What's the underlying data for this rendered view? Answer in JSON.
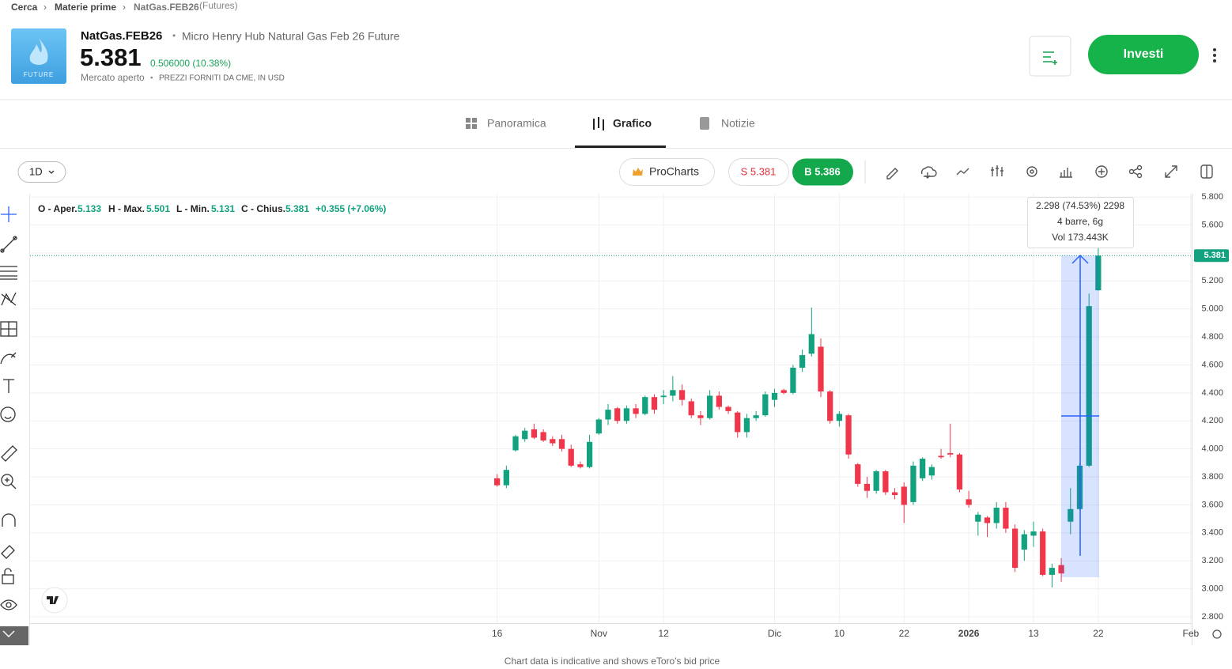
{
  "breadcrumb": {
    "items": [
      "Cerca",
      "Materie prime",
      "NatGas.FEB26"
    ],
    "suffix": "(Futures)"
  },
  "header": {
    "logo_text": "FUTURE",
    "symbol": "NatGas.FEB26",
    "name": "Micro Henry Hub Natural Gas Feb 26 Future",
    "price": "5.381",
    "change": "0.506000 (10.38%)",
    "status": "Mercato aperto",
    "source": "PREZZI FORNITI DA CME, IN USD",
    "invest_button": "Investi"
  },
  "tabs": [
    "Panoramica",
    "Grafico",
    "Notizie"
  ],
  "toolbar": {
    "interval": "1D",
    "procharts": "ProCharts",
    "sell": "S 5.381",
    "buy": "B 5.386"
  },
  "ohlc_legend": {
    "open_label": "O - Aper.",
    "open": "5.133",
    "high_label": "H - Max.",
    "high": "5.501",
    "low_label": "L - Min.",
    "low": "5.131",
    "close_label": "C - Chius.",
    "close": "5.381",
    "change": "+0.355 (+7.06%)"
  },
  "measure": {
    "line1": "2.298 (74.53%) 2298",
    "line2": "4 barre, 6g",
    "line3": "Vol 173.443K"
  },
  "footer": "Chart data is indicative and shows eToro's bid price",
  "chart_data": {
    "type": "candlestick",
    "categories": [
      "16",
      null,
      null,
      null,
      null,
      null,
      null,
      null,
      null,
      null,
      null,
      "Nov",
      null,
      null,
      null,
      null,
      null,
      null,
      "12",
      null,
      null,
      null,
      null,
      null,
      null,
      null,
      null,
      null,
      null,
      null,
      "Dic",
      null,
      null,
      null,
      null,
      null,
      null,
      "10",
      null,
      null,
      null,
      null,
      null,
      null,
      "22",
      null,
      null,
      null,
      null,
      null,
      null,
      "2026",
      null,
      null,
      null,
      null,
      null,
      null,
      "13",
      null,
      null,
      null,
      null,
      null,
      null,
      "22",
      null,
      null,
      null,
      null,
      null,
      null,
      null,
      null,
      null,
      "Feb"
    ],
    "open": [
      3.79,
      3.74,
      3.99,
      4.07,
      4.14,
      4.12,
      4.07,
      4.07,
      4.0,
      3.89,
      3.87,
      4.11,
      4.21,
      4.29,
      4.2,
      4.29,
      4.25,
      4.37,
      4.37,
      4.38,
      4.42,
      4.34,
      4.24,
      4.22,
      4.38,
      4.3,
      4.26,
      4.12,
      4.22,
      4.24,
      4.35,
      4.42,
      4.4,
      4.58,
      4.68,
      4.73,
      4.41,
      4.2,
      4.24,
      3.89,
      3.75,
      3.7,
      3.84,
      3.69,
      3.73,
      3.62,
      3.79,
      3.81,
      3.95,
      3.97,
      3.96,
      3.64,
      3.48,
      3.51,
      3.47,
      3.58,
      3.43,
      3.28,
      3.38,
      3.41,
      3.1,
      3.17,
      3.48,
      3.57,
      3.88,
      5.133,
      null,
      null,
      null,
      null,
      null,
      null,
      null,
      null,
      null,
      null
    ],
    "high": [
      3.82,
      3.88,
      4.1,
      4.15,
      4.18,
      4.14,
      4.09,
      4.1,
      4.03,
      3.91,
      4.1,
      4.22,
      4.32,
      4.3,
      4.31,
      4.32,
      4.38,
      4.39,
      4.42,
      4.52,
      4.46,
      4.36,
      4.27,
      4.42,
      4.41,
      4.31,
      4.27,
      4.25,
      4.27,
      4.41,
      4.43,
      4.43,
      4.6,
      4.71,
      5.01,
      4.79,
      4.42,
      4.27,
      4.25,
      3.9,
      3.8,
      3.85,
      3.85,
      3.72,
      3.76,
      3.91,
      3.94,
      3.89,
      4.0,
      4.18,
      3.97,
      3.7,
      3.55,
      3.52,
      3.62,
      3.62,
      3.46,
      3.42,
      3.48,
      3.43,
      3.18,
      3.22,
      3.72,
      3.9,
      5.11,
      5.501,
      null,
      null,
      null,
      null,
      null,
      null,
      null,
      null,
      null,
      null
    ],
    "low": [
      3.73,
      3.72,
      3.98,
      4.05,
      4.07,
      4.05,
      4.02,
      3.98,
      3.87,
      3.86,
      3.86,
      4.1,
      4.17,
      4.18,
      4.18,
      4.22,
      4.24,
      4.25,
      4.32,
      4.34,
      4.31,
      4.22,
      4.17,
      4.21,
      4.28,
      4.25,
      4.08,
      4.08,
      4.2,
      4.23,
      4.3,
      4.39,
      4.39,
      4.55,
      4.66,
      4.37,
      4.18,
      4.16,
      3.93,
      3.73,
      3.65,
      3.68,
      3.67,
      3.64,
      3.47,
      3.6,
      3.77,
      3.78,
      3.93,
      3.94,
      3.69,
      3.58,
      3.38,
      3.37,
      3.43,
      3.4,
      3.12,
      3.2,
      3.3,
      3.09,
      3.01,
      3.05,
      3.39,
      3.56,
      3.87,
      5.131,
      null,
      null,
      null,
      null,
      null,
      null,
      null,
      null,
      null,
      null
    ],
    "close": [
      3.74,
      3.85,
      4.09,
      4.13,
      4.08,
      4.06,
      4.04,
      4.0,
      3.88,
      3.87,
      4.05,
      4.21,
      4.28,
      4.2,
      4.29,
      4.25,
      4.37,
      4.28,
      4.38,
      4.42,
      4.35,
      4.24,
      4.22,
      4.38,
      4.3,
      4.27,
      4.12,
      4.22,
      4.24,
      4.39,
      4.4,
      4.4,
      4.58,
      4.67,
      4.82,
      4.41,
      4.2,
      4.25,
      3.96,
      3.75,
      3.7,
      3.84,
      3.69,
      3.67,
      3.6,
      3.88,
      3.93,
      3.87,
      3.94,
      3.96,
      3.71,
      3.6,
      3.53,
      3.47,
      3.58,
      3.43,
      3.15,
      3.39,
      3.41,
      3.1,
      3.15,
      3.11,
      3.57,
      3.88,
      5.02,
      5.381,
      null,
      null,
      null,
      null,
      null,
      null,
      null,
      null,
      null,
      null
    ],
    "up_color": "#12a27f",
    "down_color": "#f0364a",
    "xlim": [
      -50.5,
      75.1
    ],
    "ylim": [
      2.755,
      5.823
    ],
    "yticks": [
      {
        "value": 2.8,
        "label": "2.800"
      },
      {
        "value": 3.0,
        "label": "3.000"
      },
      {
        "value": 3.2,
        "label": "3.200"
      },
      {
        "value": 3.4,
        "label": "3.400"
      },
      {
        "value": 3.6,
        "label": "3.600"
      },
      {
        "value": 3.8,
        "label": "3.800"
      },
      {
        "value": 4.0,
        "label": "4.000"
      },
      {
        "value": 4.2,
        "label": "4.200"
      },
      {
        "value": 4.4,
        "label": "4.400"
      },
      {
        "value": 4.6,
        "label": "4.600"
      },
      {
        "value": 4.8,
        "label": "4.800"
      },
      {
        "value": 5.0,
        "label": "5.000"
      },
      {
        "value": 5.2,
        "label": "5.200"
      },
      {
        "value": 5.4,
        "label": "5.400"
      },
      {
        "value": 5.6,
        "label": "5.600"
      },
      {
        "value": 5.8,
        "label": "5.800"
      }
    ],
    "last_price": 5.381,
    "grid": true
  }
}
